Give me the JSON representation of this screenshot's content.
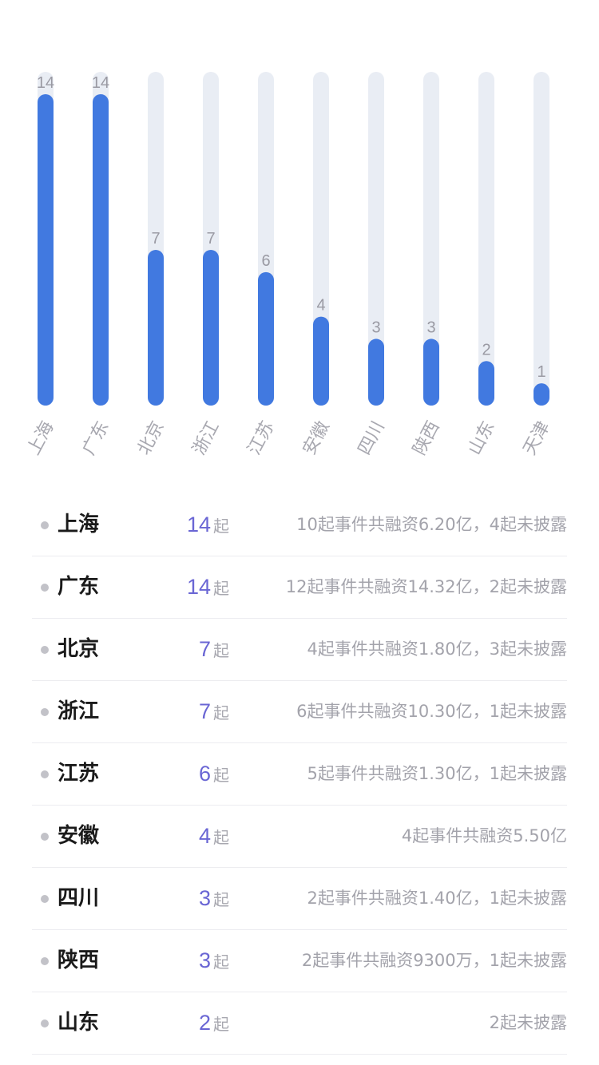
{
  "colors": {
    "bar": "#4179e0",
    "track": "#e9edf4",
    "count": "#6a66d4"
  },
  "chart_data": {
    "type": "bar",
    "categories": [
      "上海",
      "广东",
      "北京",
      "浙江",
      "江苏",
      "安徽",
      "四川",
      "陕西",
      "山东",
      "天津"
    ],
    "values": [
      14,
      14,
      7,
      7,
      6,
      4,
      3,
      3,
      2,
      1
    ],
    "ylim": [
      0,
      14
    ],
    "grid": false,
    "legend": "none"
  },
  "list": {
    "unit": "起",
    "rows": [
      {
        "province": "上海",
        "count": "14",
        "desc": "10起事件共融资6.20亿，4起未披露"
      },
      {
        "province": "广东",
        "count": "14",
        "desc": "12起事件共融资14.32亿，2起未披露"
      },
      {
        "province": "北京",
        "count": "7",
        "desc": "4起事件共融资1.80亿，3起未披露"
      },
      {
        "province": "浙江",
        "count": "7",
        "desc": "6起事件共融资10.30亿，1起未披露"
      },
      {
        "province": "江苏",
        "count": "6",
        "desc": "5起事件共融资1.30亿，1起未披露"
      },
      {
        "province": "安徽",
        "count": "4",
        "desc": "4起事件共融资5.50亿"
      },
      {
        "province": "四川",
        "count": "3",
        "desc": "2起事件共融资1.40亿，1起未披露"
      },
      {
        "province": "陕西",
        "count": "3",
        "desc": "2起事件共融资9300万，1起未披露"
      },
      {
        "province": "山东",
        "count": "2",
        "desc": "2起未披露"
      }
    ]
  }
}
